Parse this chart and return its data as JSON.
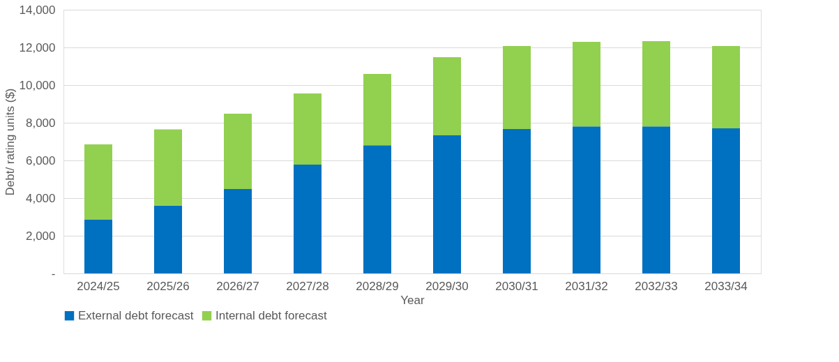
{
  "chart_data": {
    "type": "bar",
    "xlabel": "Year",
    "ylabel": "Debt/ rating units ($)",
    "categories": [
      "2024/25",
      "2025/26",
      "2026/27",
      "2027/28",
      "2028/29",
      "2029/30",
      "2030/31",
      "2031/32",
      "2032/33",
      "2033/34"
    ],
    "series": [
      {
        "name": "External debt forecast",
        "color": "#0070c0",
        "values": [
          2850,
          3600,
          4480,
          5780,
          6810,
          7330,
          7670,
          7810,
          7810,
          7700
        ]
      },
      {
        "name": "Internal debt forecast",
        "color": "#92d050",
        "values": [
          4000,
          4050,
          4000,
          3780,
          3780,
          4150,
          4400,
          4490,
          4520,
          4370
        ]
      }
    ],
    "stacked": true,
    "ylim": [
      0,
      14000
    ],
    "yticks": [
      {
        "value": 0,
        "label": "-"
      },
      {
        "value": 2000,
        "label": "2,000"
      },
      {
        "value": 4000,
        "label": "4,000"
      },
      {
        "value": 6000,
        "label": "6,000"
      },
      {
        "value": 8000,
        "label": "8,000"
      },
      {
        "value": 10000,
        "label": "10,000"
      },
      {
        "value": 12000,
        "label": "12,000"
      },
      {
        "value": 14000,
        "label": "14,000"
      }
    ],
    "grid": "y",
    "legend": "bottom"
  }
}
